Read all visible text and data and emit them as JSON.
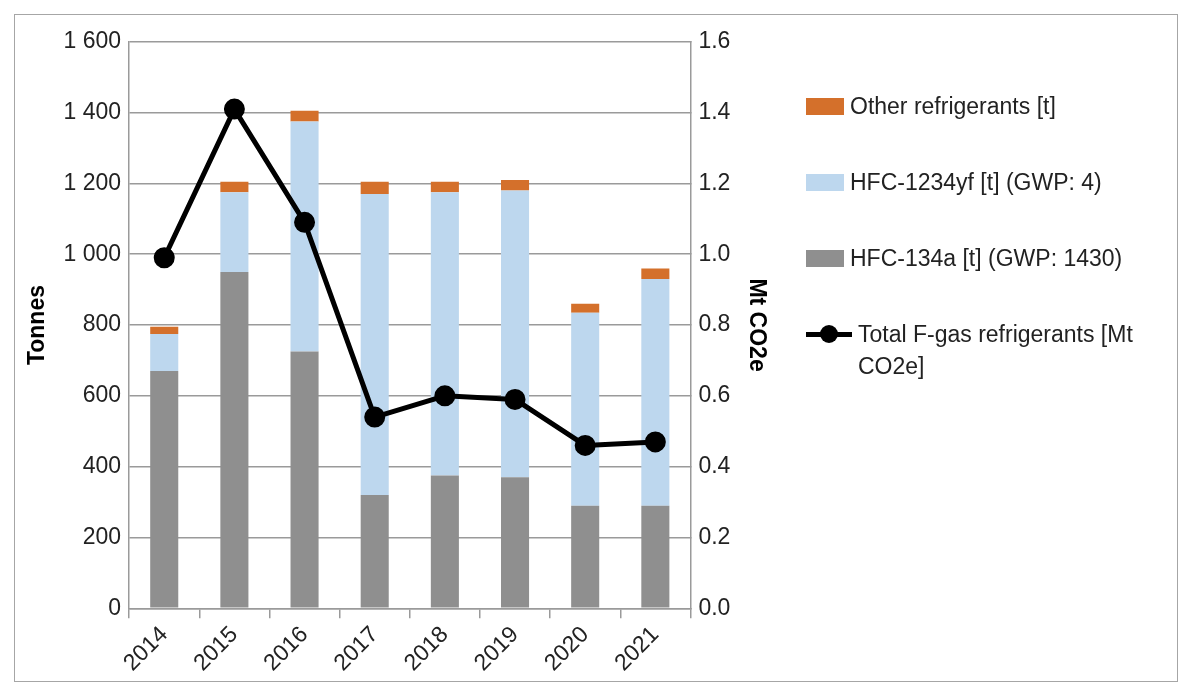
{
  "chart_data": {
    "type": "bar",
    "stacked": true,
    "ylabel": "Tonnes",
    "y2label": "Mt CO2e",
    "categories": [
      "2014",
      "2015",
      "2016",
      "2017",
      "2018",
      "2019",
      "2020",
      "2021"
    ],
    "series": [
      {
        "name": "HFC-134a [t] (GWP: 1430)",
        "color": "#8f8f8f",
        "values": [
          670,
          950,
          725,
          320,
          375,
          370,
          290,
          290
        ]
      },
      {
        "name": "HFC-1234yf [t] (GWP: 4)",
        "color": "#bdd7ee",
        "values": [
          105,
          225,
          650,
          850,
          800,
          810,
          545,
          640
        ]
      },
      {
        "name": "Other refrigerants [t]",
        "color": "#d4702b",
        "values": [
          20,
          30,
          30,
          35,
          30,
          30,
          25,
          30
        ]
      },
      {
        "name": "Total F-gas refrigerants [Mt CO2e]",
        "type": "line",
        "axis": "y2",
        "color": "#000000",
        "marker": "circle",
        "values": [
          0.99,
          1.41,
          1.09,
          0.54,
          0.6,
          0.59,
          0.46,
          0.47
        ]
      }
    ],
    "ylim": [
      0,
      1600
    ],
    "yticks": [
      0,
      200,
      400,
      600,
      800,
      {
        "value": 1000,
        "label": "1 000"
      },
      {
        "value": 1200,
        "label": "1 200"
      },
      {
        "value": 1400,
        "label": "1 400"
      },
      {
        "value": 1600,
        "label": "1 600"
      }
    ],
    "y2lim": [
      0,
      1.6
    ],
    "y2ticks": [
      {
        "value": 0,
        "label": "0.0"
      },
      {
        "value": 0.2,
        "label": "0.2"
      },
      {
        "value": 0.4,
        "label": "0.4"
      },
      {
        "value": 0.6,
        "label": "0.6"
      },
      {
        "value": 0.8,
        "label": "0.8"
      },
      {
        "value": 1,
        "label": "1.0"
      },
      {
        "value": 1.2,
        "label": "1.2"
      },
      {
        "value": 1.4,
        "label": "1.4"
      },
      {
        "value": 1.6,
        "label": "1.6"
      }
    ],
    "grid": "y",
    "legend": "right"
  }
}
